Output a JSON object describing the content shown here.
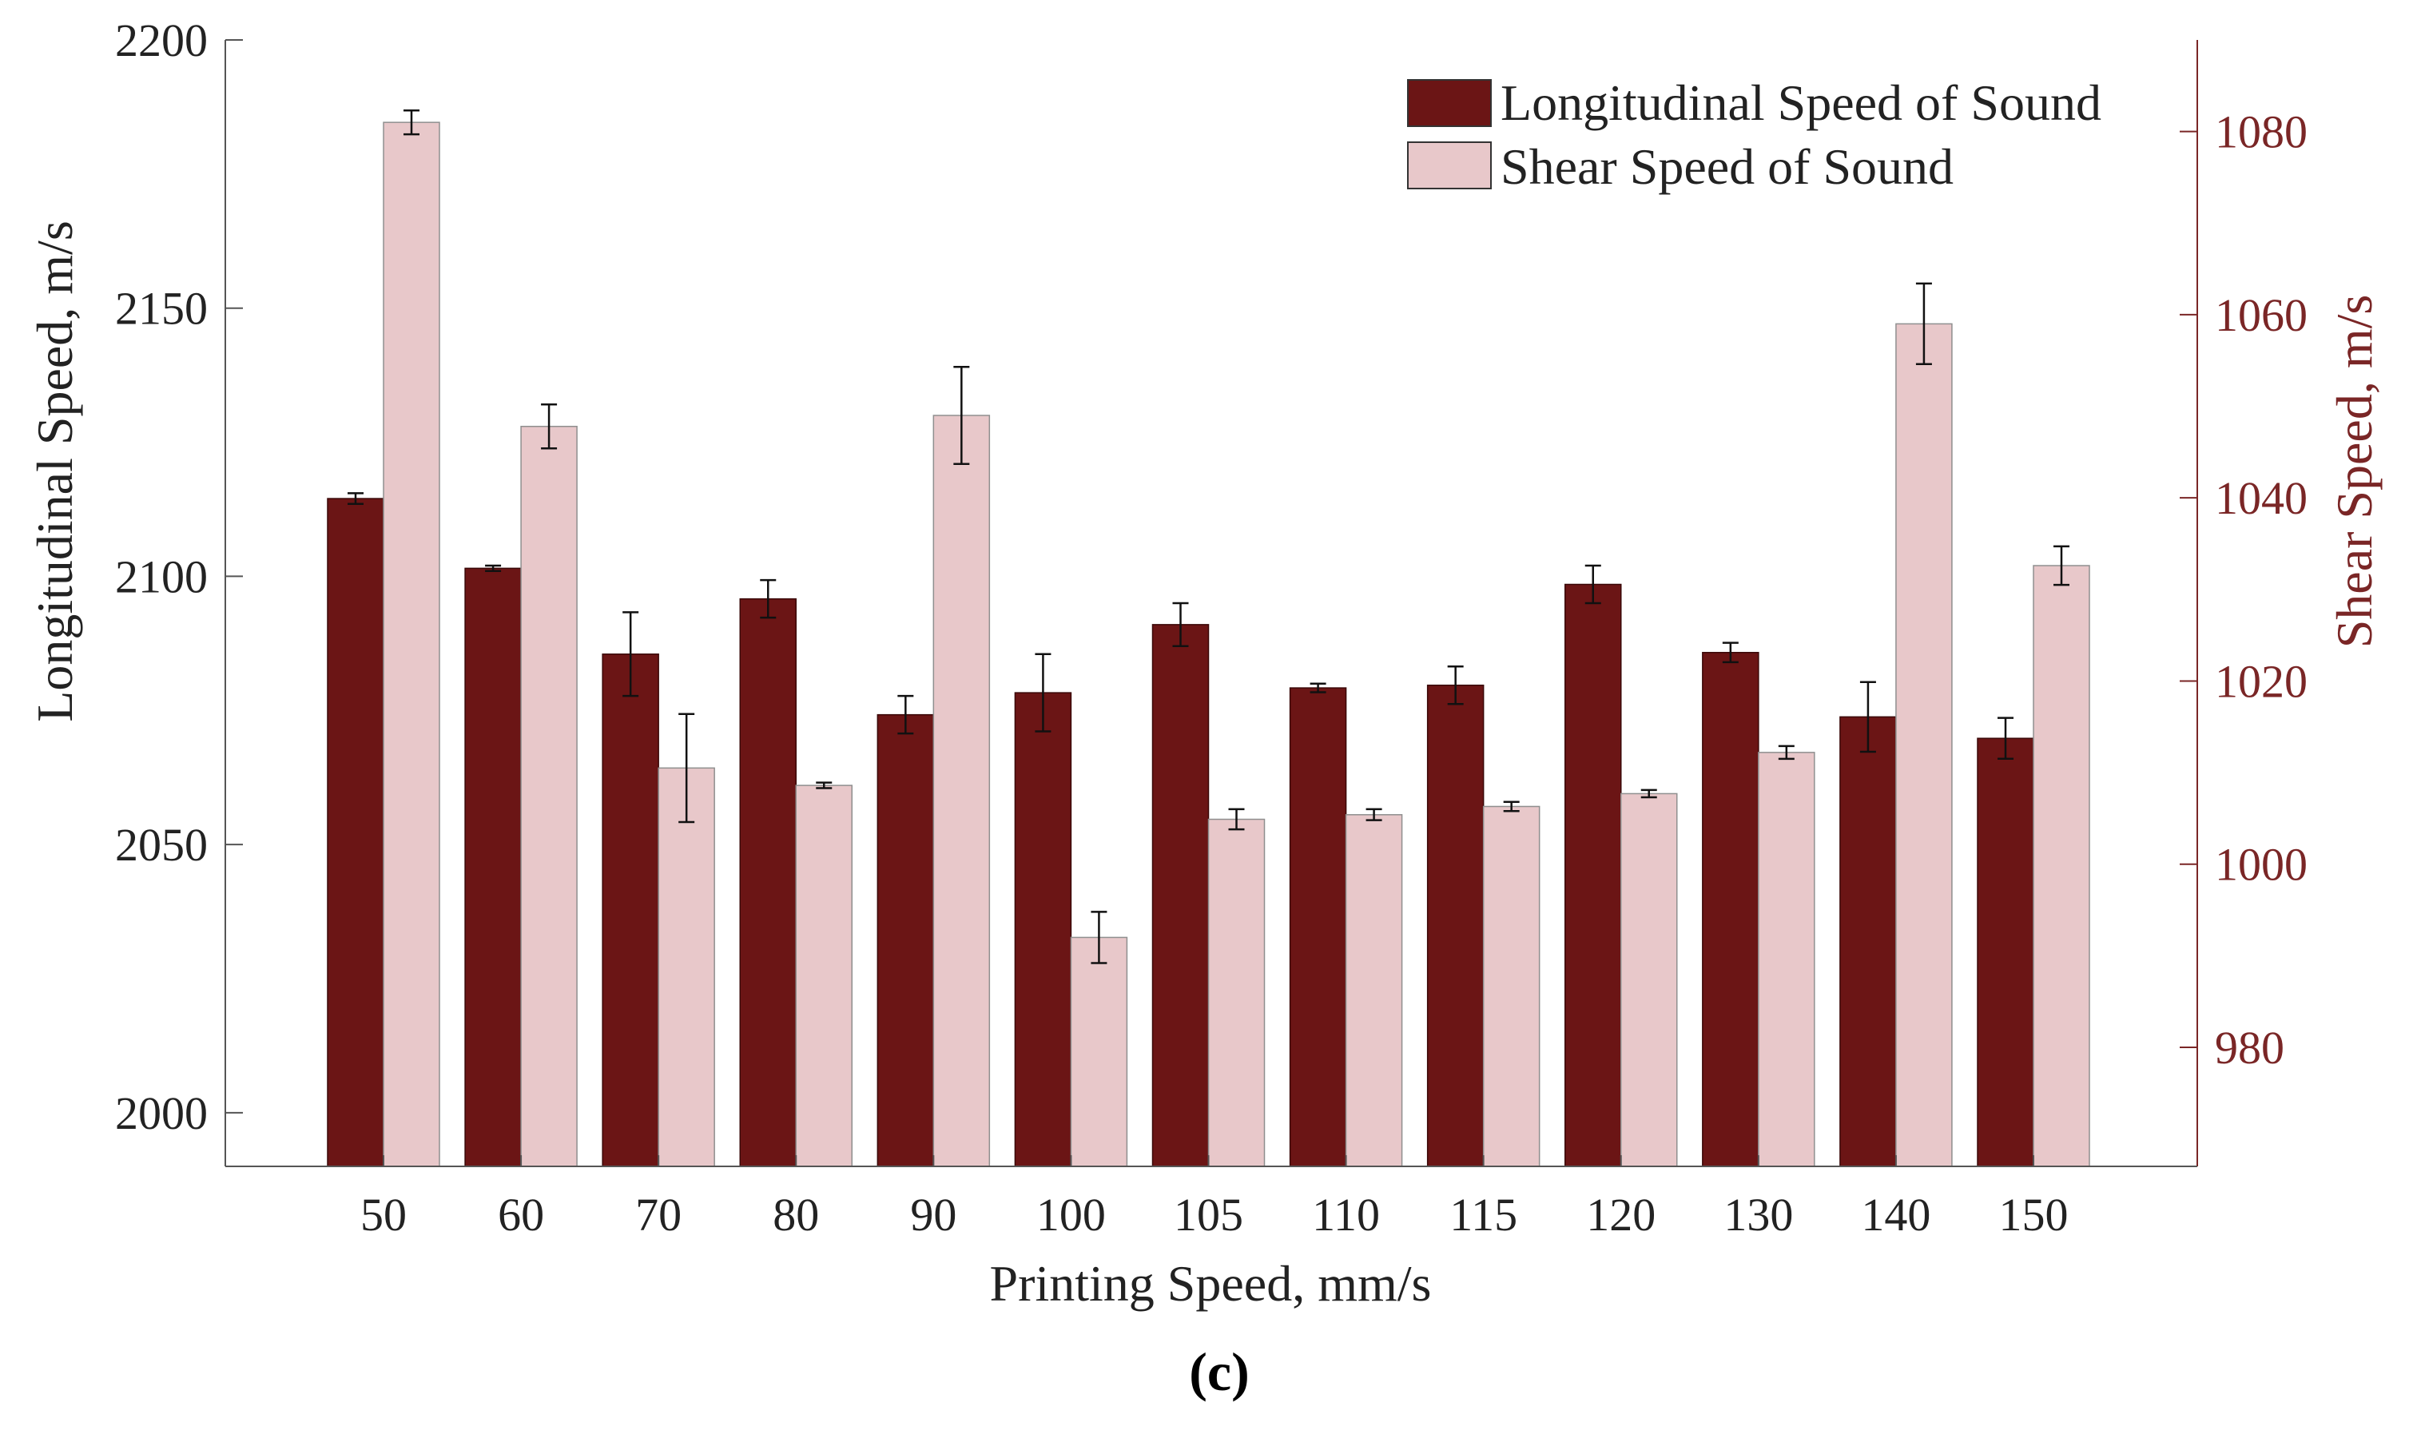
{
  "chart_data": {
    "type": "bar",
    "title": "",
    "caption": "(c)",
    "xlabel": "Printing Speed, mm/s",
    "ylabel_left": "Longitudinal Speed, m/s",
    "ylabel_right": "Shear Speed, m/s",
    "categories": [
      "50",
      "60",
      "70",
      "80",
      "90",
      "100",
      "105",
      "110",
      "115",
      "120",
      "130",
      "140",
      "150"
    ],
    "ylim_left": [
      1990,
      2200
    ],
    "yticks_left": [
      2000,
      2050,
      2100,
      2150,
      2200
    ],
    "ylim_right": [
      967,
      1090
    ],
    "yticks_right": [
      980,
      1000,
      1020,
      1040,
      1060,
      1080
    ],
    "legend_position": "top-right",
    "grid": false,
    "colors": {
      "longitudinal": "#6b1515",
      "shear": "#e8c8ca",
      "right_axis": "#7a2626",
      "axis": "#555555",
      "error_bar": "#111111"
    },
    "series": [
      {
        "name": "Longitudinal Speed of Sound",
        "axis": "left",
        "values": [
          2114.5,
          2101.5,
          2085.5,
          2095.8,
          2074.2,
          2078.3,
          2091.0,
          2079.2,
          2079.7,
          2098.5,
          2085.8,
          2073.8,
          2069.8
        ],
        "errors": [
          1.0,
          0.5,
          7.8,
          3.5,
          3.5,
          7.2,
          4.0,
          0.8,
          3.5,
          3.5,
          1.8,
          6.5,
          3.8
        ]
      },
      {
        "name": "Shear Speed of Sound",
        "axis": "right",
        "values": [
          1081.0,
          1047.8,
          1010.5,
          1008.6,
          1049.0,
          992.0,
          1004.9,
          1005.4,
          1006.3,
          1007.7,
          1012.2,
          1059.0,
          1032.6
        ],
        "errors": [
          1.3,
          2.4,
          5.9,
          0.3,
          5.3,
          2.8,
          1.1,
          0.6,
          0.5,
          0.4,
          0.7,
          4.4,
          2.1
        ]
      }
    ]
  }
}
